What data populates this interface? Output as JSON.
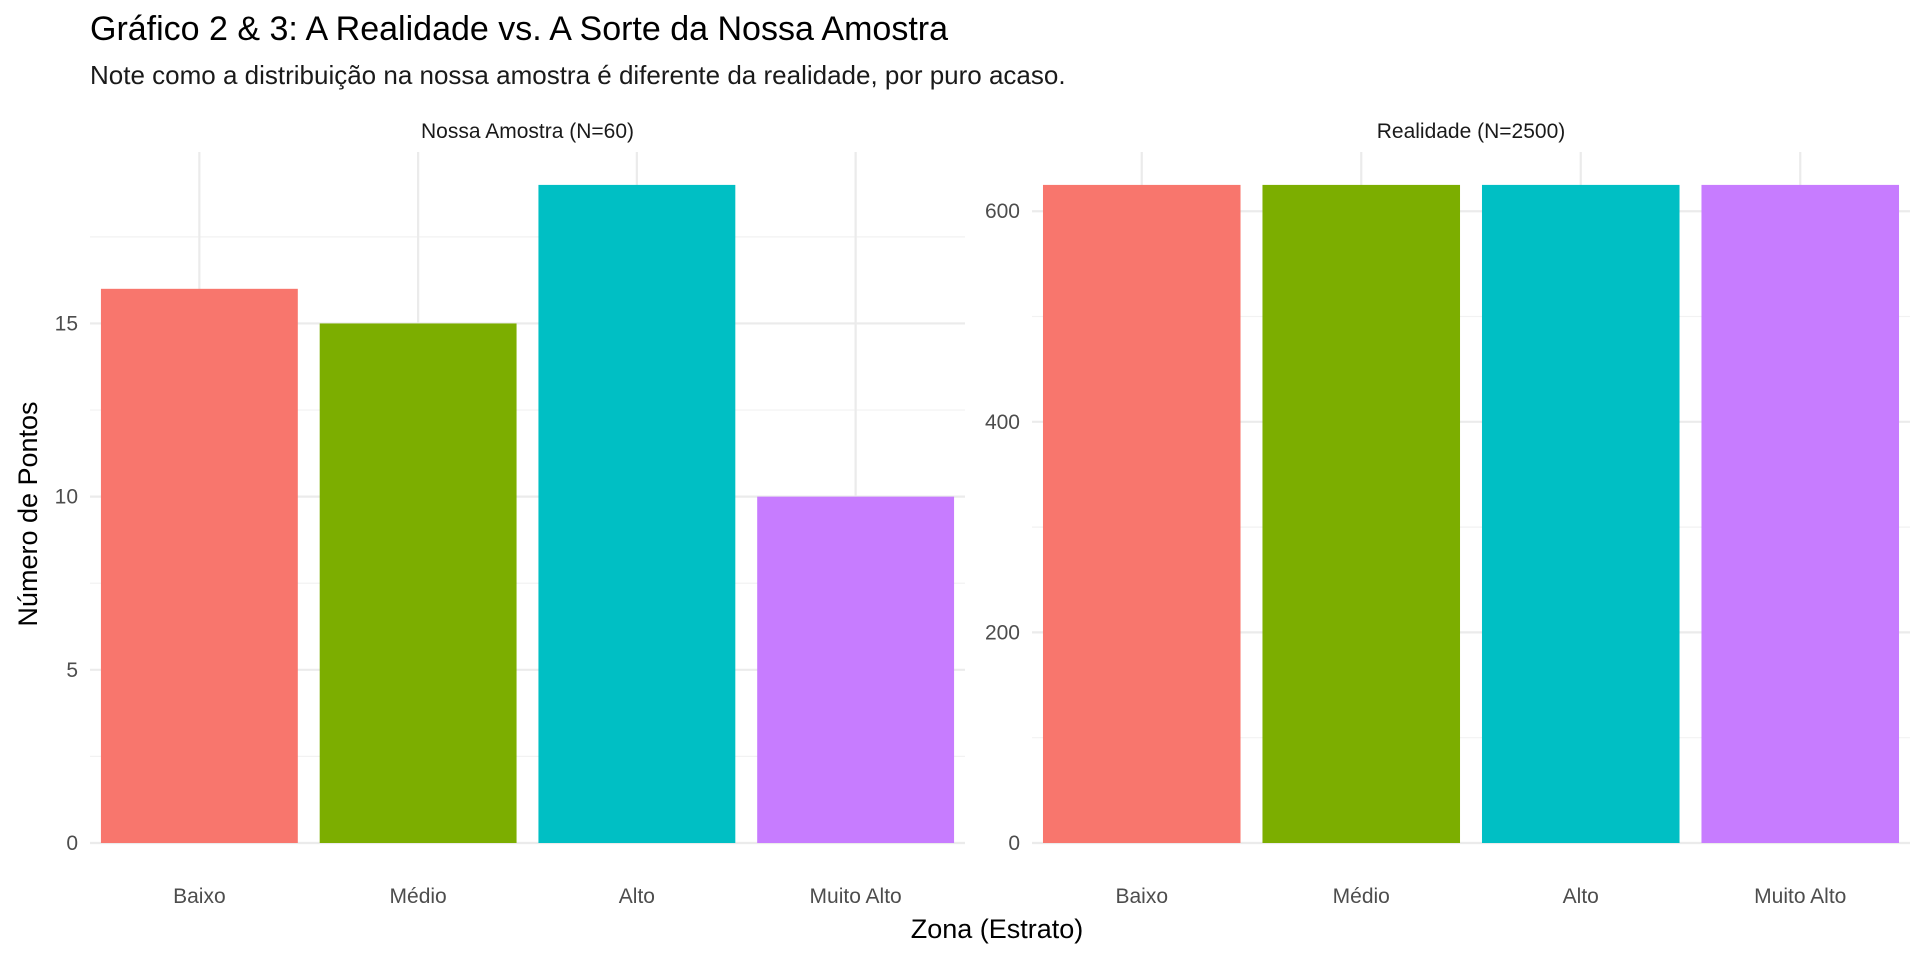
{
  "title": "Gráfico 2 & 3: A Realidade vs. A Sorte da Nossa Amostra",
  "subtitle": "Note como a distribuição na nossa amostra é diferente da realidade, por puro acaso.",
  "xlabel": "Zona (Estrato)",
  "ylabel": "Número de Pontos",
  "colors": {
    "Baixo": "#F8766D",
    "Médio": "#7CAE00",
    "Alto": "#00BFC4",
    "Muito Alto": "#C77CFF"
  },
  "chart_data": [
    {
      "type": "bar",
      "panel_title": "Nossa Amostra (N=60)",
      "categories": [
        "Baixo",
        "Médio",
        "Alto",
        "Muito Alto"
      ],
      "values": [
        16,
        15,
        19,
        10
      ],
      "ylim": [
        0,
        19.95
      ],
      "yticks": [
        0,
        5,
        10,
        15
      ],
      "grid": true
    },
    {
      "type": "bar",
      "panel_title": "Realidade (N=2500)",
      "categories": [
        "Baixo",
        "Médio",
        "Alto",
        "Muito Alto"
      ],
      "values": [
        625,
        625,
        625,
        625
      ],
      "ylim": [
        0,
        656.25
      ],
      "yticks": [
        0,
        200,
        400,
        600
      ],
      "grid": true
    }
  ]
}
